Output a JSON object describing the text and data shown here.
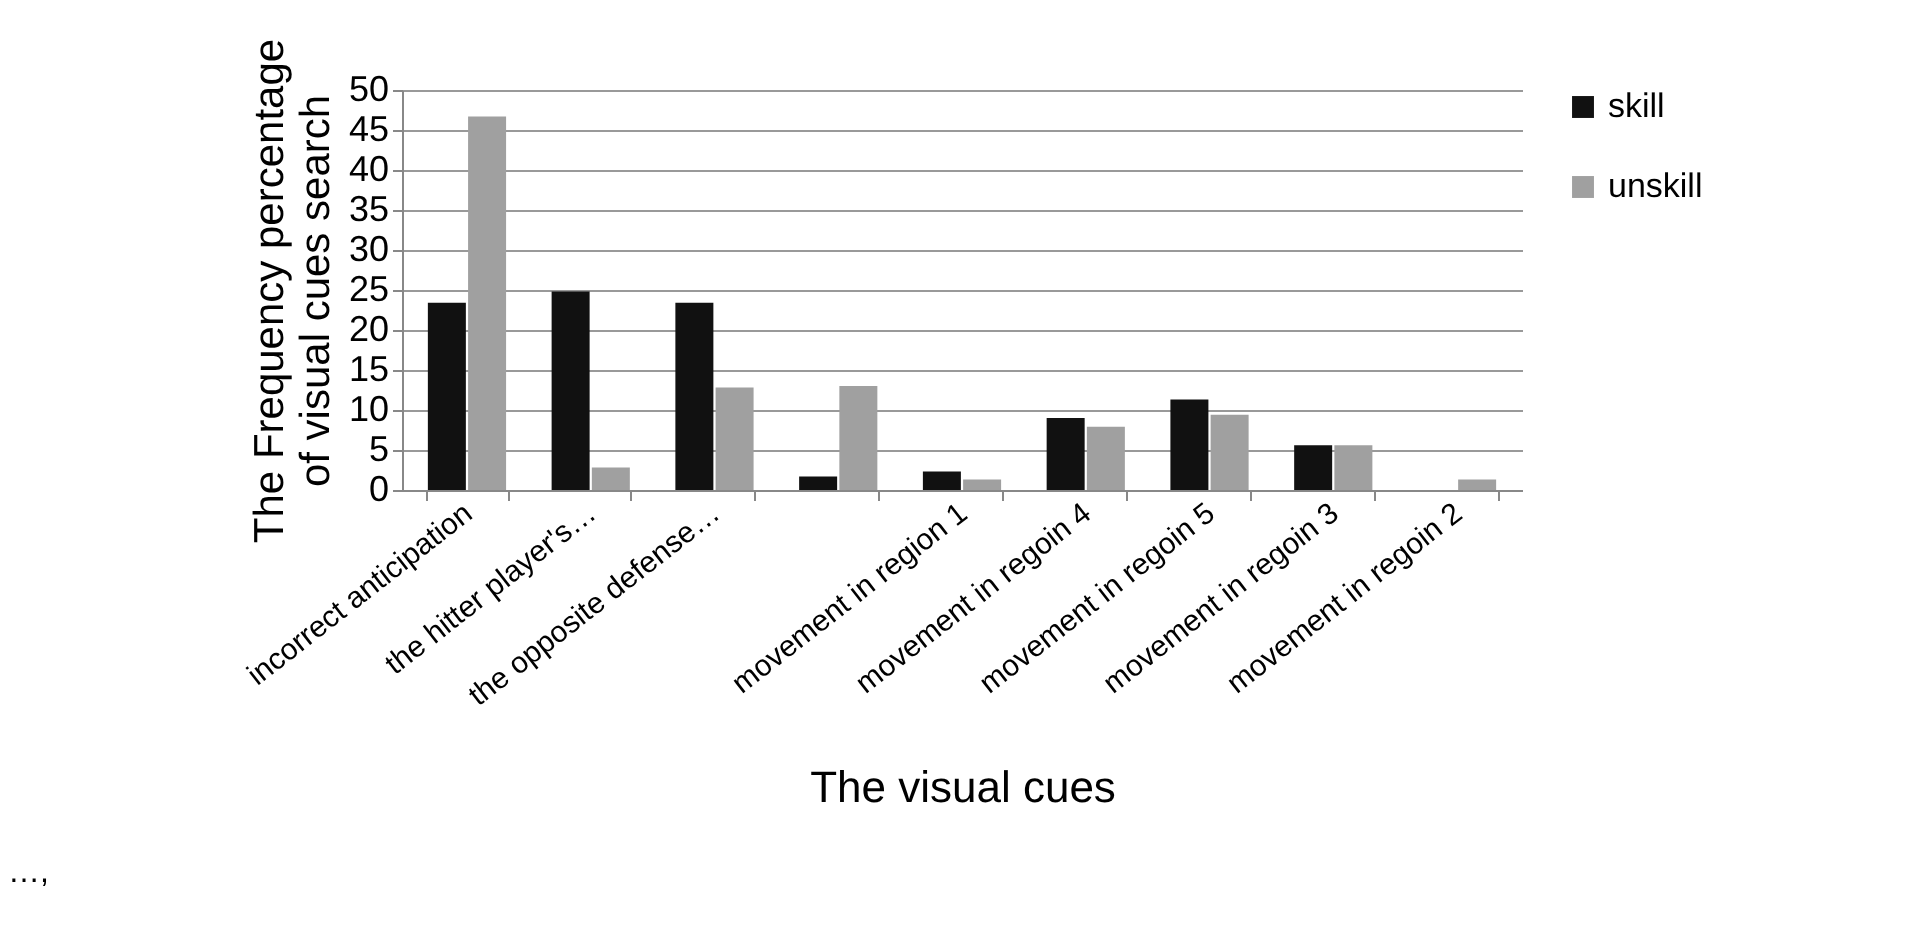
{
  "chart_data": {
    "type": "bar",
    "xlabel": "The visual cues",
    "ylabel": "The Frequency percentage of visual cues search",
    "categories": [
      "incorrect anticipation",
      "the hitter player's…",
      "the opposite defense…",
      null,
      "movement in region 1",
      "movement in regoin 4",
      "movement in regoin 5",
      "movement in regoin 3",
      "movement in regoin 2"
    ],
    "series": [
      {
        "name": "skill",
        "color": "#111111",
        "values": [
          23.4,
          24.8,
          23.4,
          1.7,
          2.3,
          9.0,
          11.3,
          5.6,
          0
        ]
      },
      {
        "name": "unskill",
        "color": "#a0a0a0",
        "values": [
          46.7,
          2.8,
          12.8,
          13.0,
          1.3,
          7.9,
          9.4,
          5.6,
          1.3
        ]
      }
    ],
    "ylim": [
      0,
      50
    ],
    "yticks": [
      0,
      5,
      10,
      15,
      20,
      25,
      30,
      35,
      40,
      45,
      50
    ],
    "grid": "y",
    "legend": "right",
    "annotations": [
      "…,"
    ]
  }
}
